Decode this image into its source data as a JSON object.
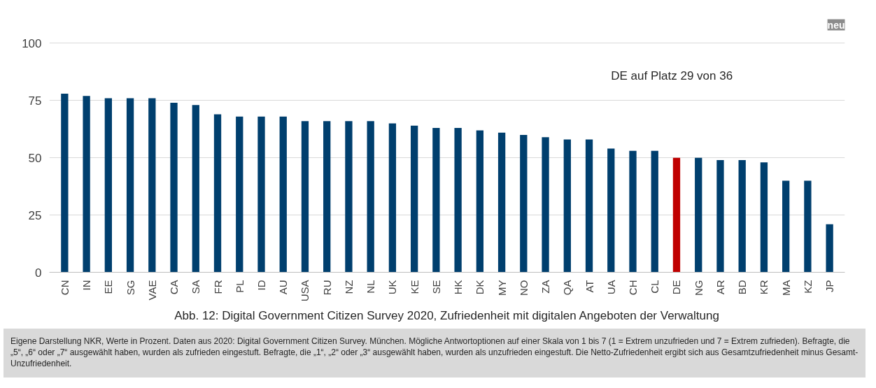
{
  "chart_data": {
    "type": "bar",
    "title": "Abb. 12: Digital Government Citizen Survey 2020, Zufriedenheit mit digitalen Angeboten der Verwaltung",
    "categories": [
      "CN",
      "IN",
      "EE",
      "SG",
      "VAE",
      "CA",
      "SA",
      "FR",
      "PL",
      "ID",
      "AU",
      "USA",
      "RU",
      "NZ",
      "NL",
      "UK",
      "KE",
      "SE",
      "HK",
      "DK",
      "MY",
      "NO",
      "ZA",
      "QA",
      "AT",
      "UA",
      "CH",
      "CL",
      "DE",
      "NG",
      "AR",
      "BD",
      "KR",
      "MA",
      "KZ",
      "JP"
    ],
    "values": [
      78,
      77,
      76,
      76,
      76,
      74,
      73,
      69,
      68,
      68,
      68,
      66,
      66,
      66,
      66,
      65,
      64,
      63,
      63,
      62,
      61,
      60,
      59,
      58,
      58,
      54,
      53,
      53,
      50,
      50,
      49,
      49,
      48,
      40,
      40,
      21
    ],
    "colors": [
      "#003f6e",
      "#003f6e",
      "#003f6e",
      "#003f6e",
      "#003f6e",
      "#003f6e",
      "#003f6e",
      "#003f6e",
      "#003f6e",
      "#003f6e",
      "#003f6e",
      "#003f6e",
      "#003f6e",
      "#003f6e",
      "#003f6e",
      "#003f6e",
      "#003f6e",
      "#003f6e",
      "#003f6e",
      "#003f6e",
      "#003f6e",
      "#003f6e",
      "#003f6e",
      "#003f6e",
      "#003f6e",
      "#003f6e",
      "#003f6e",
      "#003f6e",
      "#c00000",
      "#003f6e",
      "#003f6e",
      "#003f6e",
      "#003f6e",
      "#003f6e",
      "#003f6e",
      "#003f6e"
    ],
    "ylim": [
      0,
      100
    ],
    "yticks": [
      0,
      25,
      50,
      75,
      100
    ],
    "grid": "y",
    "annotations": [
      "DE auf Platz 29 von 36",
      "neu",
      "Eigene Darstellung NKR, Werte in Prozent. Daten aus 2020: Digital Government Citizen Survey. München. Mögliche Antwortoptionen auf einer Skala von 1 bis 7 (1 = Extrem unzufrieden und 7 = Extrem zufrieden). Befragte, die „5“, „6“ oder „7“ ausgewählt haben, wurden als zufrieden eingestuft. Befragte, die „1“, „2“ oder „3“ ausgewählt haben, wurden als unzufrieden eingestuft. Die Netto-Zufriedenheit ergibt sich aus Gesamtzufriedenheit minus Gesamt-Unzufriedenheit."
    ]
  }
}
